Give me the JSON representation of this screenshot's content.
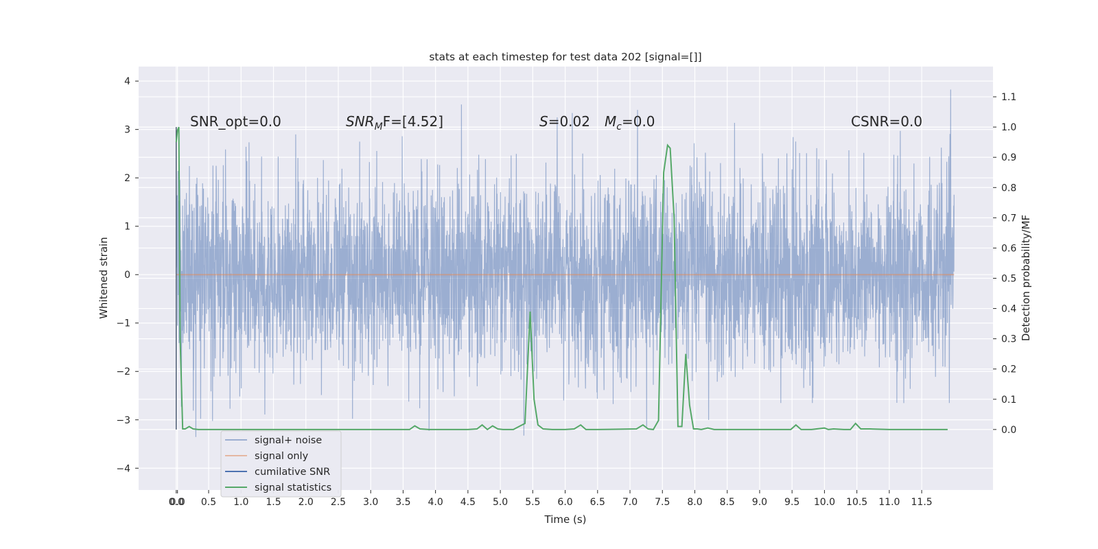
{
  "chart_data": {
    "type": "line",
    "title": "stats at each timestep for test data 202 [signal=[]]",
    "xlabel": "Time (s)",
    "ylabel_left": "Whitened strain",
    "ylabel_right": "Detection probability/MF",
    "xlim": [
      -0.58,
      12.6
    ],
    "ylim_left": [
      -4.45,
      4.3
    ],
    "ylim_right": [
      -0.2,
      1.2
    ],
    "grid": true,
    "legend_position": "lower-left",
    "x_ticks": [
      "0.0",
      "0.0",
      "0.5",
      "1.0",
      "1.5",
      "2.0",
      "2.5",
      "3.0",
      "3.5",
      "4.0",
      "4.5",
      "5.0",
      "5.5",
      "6.0",
      "6.5",
      "7.0",
      "7.5",
      "8.0",
      "8.5",
      "9.0",
      "9.5",
      "10.0",
      "10.5",
      "11.0",
      "11.5"
    ],
    "y_ticks_left": [
      "4",
      "3",
      "2",
      "1",
      "0",
      "−1",
      "−2",
      "−3",
      "−4"
    ],
    "y_ticks_right": [
      "1.1",
      "1.0",
      "0.9",
      "0.8",
      "0.7",
      "0.6",
      "0.5",
      "0.4",
      "0.3",
      "0.2",
      "0.1",
      "0.0"
    ],
    "annotations": {
      "snr_opt": "SNR_opt=0.0",
      "snr_mf_label": "SNR",
      "snr_mf_sub": "M",
      "snr_mf_tail": "F=[4.52]",
      "s_label": "S",
      "s_value": "=0.02",
      "mc_label": "M",
      "mc_sub": "c",
      "mc_value": "=0.0",
      "csnr": "CSNR=0.0"
    },
    "series": [
      {
        "name": "signal+ noise",
        "axis": "left",
        "color": "#4c72b0",
        "style": "dense noisy trace, roughly gaussian (sigma ~1.0), x from 0.0 to 12.0",
        "x_range": [
          0.0,
          12.0
        ],
        "y_range": [
          -3.5,
          3.9
        ]
      },
      {
        "name": "signal only",
        "axis": "left",
        "color": "#dd8452",
        "x": [
          0.0,
          12.0
        ],
        "y": [
          0.0,
          0.0
        ]
      },
      {
        "name": "cumilative SNR",
        "axis": "right",
        "color": "#4c72b0",
        "x": [
          0.0,
          0.0
        ],
        "y": [
          0.0,
          1.0
        ]
      },
      {
        "name": "signal statistics",
        "axis": "right",
        "color": "#55a868",
        "x": [
          0.0,
          0.02,
          0.04,
          0.06,
          0.1,
          0.14,
          0.2,
          0.26,
          0.34,
          0.5,
          1.0,
          2.0,
          3.0,
          3.6,
          3.68,
          3.76,
          3.9,
          4.5,
          4.64,
          4.72,
          4.8,
          4.88,
          4.96,
          5.04,
          5.2,
          5.38,
          5.46,
          5.52,
          5.58,
          5.66,
          5.8,
          6.0,
          6.14,
          6.24,
          6.32,
          6.5,
          7.1,
          7.2,
          7.28,
          7.36,
          7.44,
          7.52,
          7.58,
          7.62,
          7.68,
          7.74,
          7.8,
          7.86,
          7.92,
          7.98,
          8.04,
          8.1,
          8.2,
          8.3,
          9.0,
          9.48,
          9.56,
          9.64,
          9.8,
          10.0,
          10.06,
          10.14,
          10.3,
          10.4,
          10.48,
          10.56,
          10.7,
          11.0,
          11.5,
          11.9
        ],
        "y": [
          0.95,
          0.99,
          1.0,
          0.3,
          0.002,
          0.002,
          0.01,
          0.002,
          0.0,
          0.0,
          0.0,
          0.0,
          0.0,
          0.0,
          0.012,
          0.002,
          0.0,
          0.0,
          0.002,
          0.015,
          0.0,
          0.012,
          0.002,
          0.0,
          0.0,
          0.02,
          0.39,
          0.1,
          0.015,
          0.002,
          0.0,
          0.0,
          0.002,
          0.015,
          0.0,
          0.0,
          0.002,
          0.015,
          0.002,
          0.0,
          0.03,
          0.85,
          0.94,
          0.93,
          0.7,
          0.01,
          0.01,
          0.25,
          0.08,
          0.002,
          0.002,
          0.0,
          0.005,
          0.0,
          0.0,
          0.0,
          0.015,
          0.0,
          0.0,
          0.005,
          0.0,
          0.002,
          0.0,
          0.0,
          0.02,
          0.002,
          0.002,
          0.0,
          0.0,
          0.0
        ]
      }
    ]
  }
}
